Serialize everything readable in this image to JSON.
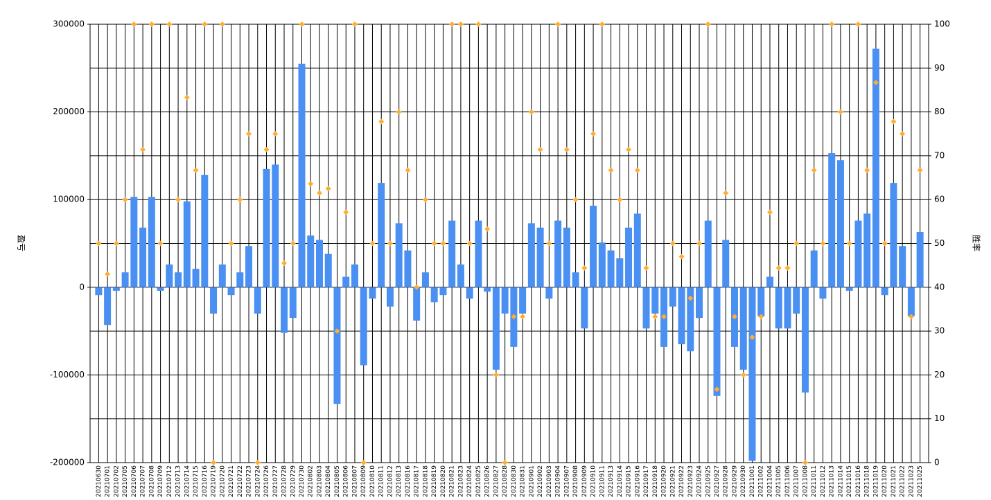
{
  "chart_data": {
    "type": "bar",
    "ylabel": "盈亏",
    "y2label": "胜率",
    "categories": [
      "20210630",
      "20210701",
      "20210702",
      "20210705",
      "20210706",
      "20210707",
      "20210708",
      "20210709",
      "20210712",
      "20210713",
      "20210714",
      "20210715",
      "20210716",
      "20210719",
      "20210720",
      "20210721",
      "20210722",
      "20210723",
      "20210724",
      "20210726",
      "20210727",
      "20210728",
      "20210729",
      "20210730",
      "20210802",
      "20210803",
      "20210804",
      "20210805",
      "20210806",
      "20210807",
      "20210809",
      "20210810",
      "20210811",
      "20210812",
      "20210813",
      "20210816",
      "20210817",
      "20210818",
      "20210819",
      "20210820",
      "20210821",
      "20210823",
      "20210824",
      "20210825",
      "20210826",
      "20210827",
      "20210828",
      "20210830",
      "20210831",
      "20210901",
      "20210902",
      "20210903",
      "20210904",
      "20210907",
      "20210908",
      "20210909",
      "20210910",
      "20210911",
      "20210913",
      "20210914",
      "20210915",
      "20210916",
      "20210917",
      "20210918",
      "20210920",
      "20210921",
      "20210922",
      "20210923",
      "20210924",
      "20210925",
      "20210927",
      "20210928",
      "20210929",
      "20210930",
      "20211001",
      "20211002",
      "20211004",
      "20211005",
      "20211006",
      "20211007",
      "20211008",
      "20211011",
      "20211012",
      "20211013",
      "20211014",
      "20211015",
      "20211016",
      "20211018",
      "20211019",
      "20211020",
      "20211021",
      "20211022",
      "20211023",
      "20211025"
    ],
    "series": [
      {
        "color": "#4a8ff2",
        "values": [
          -9000,
          -43000,
          -4000,
          17000,
          103000,
          68000,
          103000,
          -4000,
          26000,
          17000,
          98000,
          21000,
          128000,
          -30000,
          26000,
          -9000,
          17000,
          47000,
          -30000,
          135000,
          140000,
          -52000,
          -35000,
          255000,
          59000,
          54000,
          38000,
          -133000,
          12000,
          26000,
          -89000,
          -13000,
          119000,
          -22000,
          73000,
          42000,
          -38000,
          17000,
          -17000,
          -9000,
          76000,
          26000,
          -13000,
          76000,
          -5000,
          -94000,
          -30000,
          -68000,
          -30000,
          73000,
          68000,
          -13000,
          76000,
          68000,
          17000,
          -47000,
          93000,
          51000,
          42000,
          33000,
          68000,
          84000,
          -47000,
          -30000,
          -68000,
          -22000,
          -65000,
          -73000,
          -35000,
          76000,
          -124000,
          54000,
          -68000,
          -94000,
          -198000,
          -33000,
          12000,
          -47000,
          -47000,
          -30000,
          -120000,
          42000,
          -13000,
          153000,
          145000,
          -4000,
          76000,
          84000,
          272000,
          -9000,
          119000,
          47000,
          -33000,
          63000
        ]
      },
      {
        "color": "#ffad33",
        "axis": "y2",
        "marker": "diamond",
        "values": [
          50,
          43,
          50,
          60,
          100,
          71.4,
          100,
          50,
          100,
          60,
          83.3,
          66.7,
          100,
          0,
          100,
          50,
          60,
          75,
          0,
          71.4,
          75,
          45.5,
          50,
          100,
          63.6,
          61.5,
          62.5,
          30,
          57.1,
          100,
          0,
          50,
          77.8,
          50,
          80,
          66.7,
          40,
          60,
          50,
          50,
          100,
          100,
          50,
          100,
          53.3,
          20,
          0,
          33.3,
          33.3,
          80,
          71.4,
          50,
          100,
          71.4,
          60,
          44.4,
          75,
          100,
          66.7,
          60,
          71.4,
          66.7,
          44.4,
          33.3,
          33.3,
          50,
          47,
          37.5,
          50,
          100,
          16.7,
          61.5,
          33.3,
          20,
          28.6,
          33.3,
          57.1,
          44.4,
          44.4,
          50,
          0,
          66.7,
          50,
          100,
          80,
          50,
          100,
          66.7,
          86.7,
          50,
          77.8,
          75,
          33.3,
          66.7
        ]
      }
    ],
    "ylim": [
      -200000,
      300000
    ],
    "yticks": [
      -200000,
      -100000,
      0,
      100000,
      200000,
      300000
    ],
    "y2lim": [
      0,
      100
    ],
    "y2ticks": [
      0,
      10,
      20,
      30,
      40,
      50,
      60,
      70,
      80,
      90,
      100
    ],
    "grid": true
  }
}
